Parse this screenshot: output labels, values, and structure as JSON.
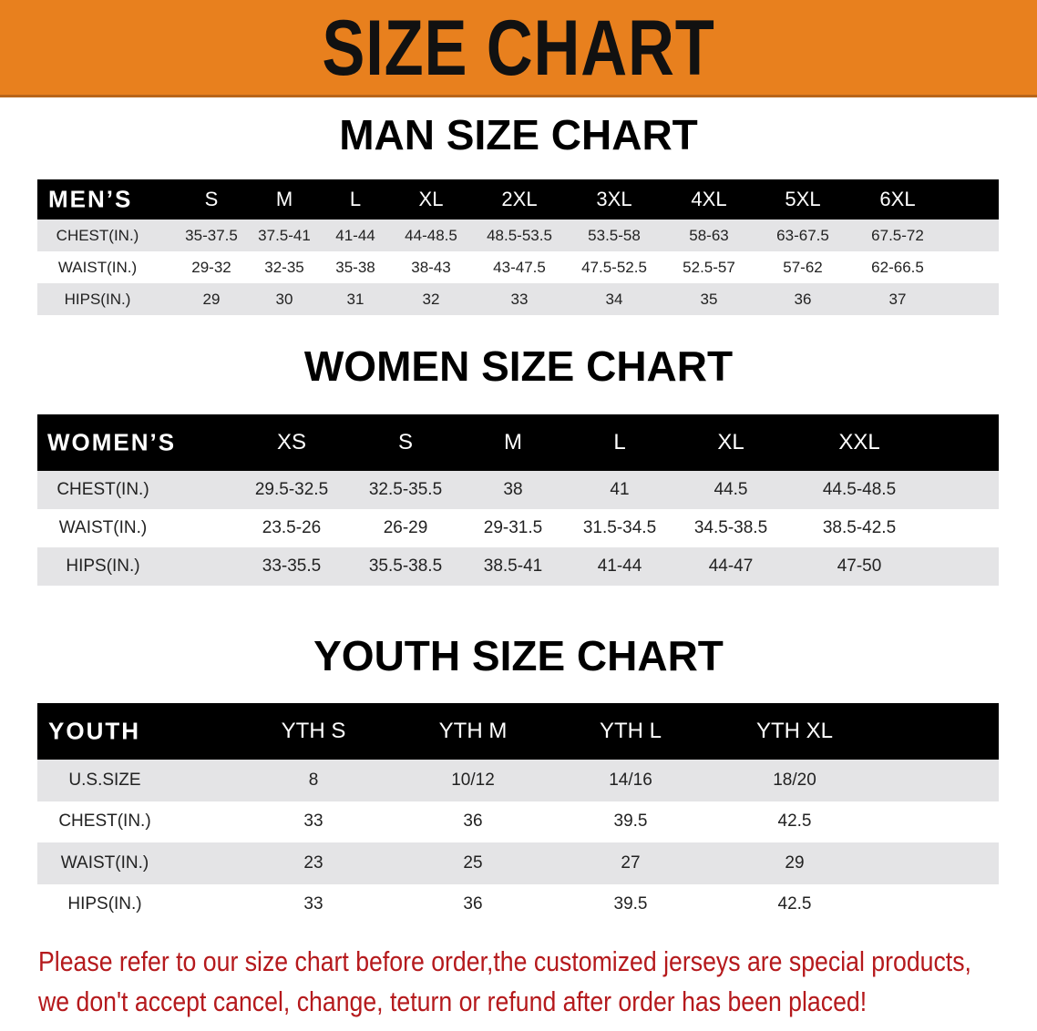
{
  "banner": {
    "title": "SIZE CHART",
    "color": "#e8801e"
  },
  "men": {
    "title": "MAN SIZE CHART",
    "header": [
      "MEN’S",
      "S",
      "M",
      "L",
      "XL",
      "2XL",
      "3XL",
      "4XL",
      "5XL",
      "6XL"
    ],
    "rows": [
      [
        "CHEST(IN.)",
        "35-37.5",
        "37.5-41",
        "41-44",
        "44-48.5",
        "48.5-53.5",
        "53.5-58",
        "58-63",
        "63-67.5",
        "67.5-72"
      ],
      [
        "WAIST(IN.)",
        "29-32",
        "32-35",
        "35-38",
        "38-43",
        "43-47.5",
        "47.5-52.5",
        "52.5-57",
        "57-62",
        "62-66.5"
      ],
      [
        "HIPS(IN.)",
        "29",
        "30",
        "31",
        "32",
        "33",
        "34",
        "35",
        "36",
        "37"
      ]
    ]
  },
  "women": {
    "title": "WOMEN SIZE CHART",
    "header": [
      "WOMEN’S",
      "XS",
      "S",
      "M",
      "L",
      "XL",
      "XXL"
    ],
    "rows": [
      [
        "CHEST(IN.)",
        "29.5-32.5",
        "32.5-35.5",
        "38",
        "41",
        "44.5",
        "44.5-48.5"
      ],
      [
        "WAIST(IN.)",
        "23.5-26",
        "26-29",
        "29-31.5",
        "31.5-34.5",
        "34.5-38.5",
        "38.5-42.5"
      ],
      [
        "HIPS(IN.)",
        "33-35.5",
        "35.5-38.5",
        "38.5-41",
        "41-44",
        "44-47",
        "47-50"
      ]
    ]
  },
  "youth": {
    "title": "YOUTH SIZE CHART",
    "header": [
      "YOUTH",
      "YTH S",
      "YTH M",
      "YTH L",
      "YTH XL"
    ],
    "rows": [
      [
        "U.S.SIZE",
        "8",
        "10/12",
        "14/16",
        "18/20"
      ],
      [
        "CHEST(IN.)",
        "33",
        "36",
        "39.5",
        "42.5"
      ],
      [
        "WAIST(IN.)",
        "23",
        "25",
        "27",
        "29"
      ],
      [
        "HIPS(IN.)",
        "33",
        "36",
        "39.5",
        "42.5"
      ]
    ]
  },
  "notice": {
    "line1": "Please refer to our size chart before order,the customized jerseys are special products,",
    "line2": "we don't accept cancel, change, teturn or refund after order has been placed!",
    "color": "#b5191c"
  }
}
